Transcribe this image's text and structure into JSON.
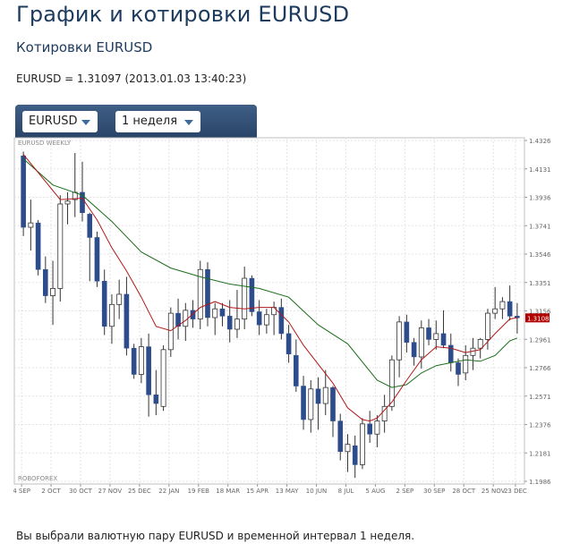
{
  "page": {
    "title": "График и котировки EURUSD",
    "subtitle": "Котировки EURUSD",
    "quote_line": "EURUSD = 1.31097 (2013.01.03 13:40:23)",
    "footer": "Вы выбрали валютную пару EURUSD и временной интервал 1 неделя."
  },
  "controls": {
    "symbol": {
      "value": "EURUSD"
    },
    "period": {
      "value": "1 неделя"
    }
  },
  "chart_data": {
    "type": "candlestick",
    "symbol_label": "EURUSD WEEKLY",
    "watermark": "ROBOFOREX",
    "current_price_label": "1.3108",
    "current_price": 1.3108,
    "ylim": [
      1.1986,
      1.4326
    ],
    "y_ticks": [
      "1.4326",
      "1.4131",
      "1.3936",
      "1.3741",
      "1.3546",
      "1.3351",
      "1.3156",
      "1.2961",
      "1.2766",
      "1.2571",
      "1.2376",
      "1.2181",
      "1.1986"
    ],
    "x_ticks": [
      "4 SEP",
      "2 OCT",
      "30 OCT",
      "27 NOV",
      "25 DEC",
      "22 JAN",
      "19 FEB",
      "18 MAR",
      "15 APR",
      "13 MAY",
      "10 JUN",
      "8 JUL",
      "5 AUG",
      "2 SEP",
      "30 SEP",
      "28 OCT",
      "25 NOV",
      "23 DEC"
    ],
    "grid": true,
    "colors": {
      "bear": "#2d4c8c",
      "bull": "#ffffff",
      "wick": "#333333",
      "ma_fast": "#b01818",
      "ma_slow": "#1c6d1c",
      "price_tag": "#b00000"
    },
    "candles": [
      [
        1.422,
        1.425,
        1.367,
        1.373
      ],
      [
        1.373,
        1.392,
        1.357,
        1.376
      ],
      [
        1.376,
        1.378,
        1.34,
        1.344
      ],
      [
        1.344,
        1.353,
        1.321,
        1.326
      ],
      [
        1.326,
        1.35,
        1.306,
        1.331
      ],
      [
        1.331,
        1.395,
        1.322,
        1.389
      ],
      [
        1.389,
        1.397,
        1.375,
        1.391
      ],
      [
        1.392,
        1.424,
        1.38,
        1.397
      ],
      [
        1.397,
        1.418,
        1.377,
        1.383
      ],
      [
        1.382,
        1.383,
        1.336,
        1.366
      ],
      [
        1.366,
        1.37,
        1.332,
        1.336
      ],
      [
        1.336,
        1.344,
        1.299,
        1.305
      ],
      [
        1.305,
        1.327,
        1.293,
        1.32
      ],
      [
        1.32,
        1.337,
        1.31,
        1.327
      ],
      [
        1.327,
        1.339,
        1.285,
        1.29
      ],
      [
        1.29,
        1.293,
        1.269,
        1.272
      ],
      [
        1.272,
        1.297,
        1.266,
        1.291
      ],
      [
        1.291,
        1.3,
        1.243,
        1.258
      ],
      [
        1.258,
        1.275,
        1.244,
        1.252
      ],
      [
        1.25,
        1.292,
        1.247,
        1.289
      ],
      [
        1.289,
        1.318,
        1.284,
        1.314
      ],
      [
        1.314,
        1.324,
        1.296,
        1.305
      ],
      [
        1.305,
        1.321,
        1.295,
        1.316
      ],
      [
        1.316,
        1.323,
        1.304,
        1.31
      ],
      [
        1.31,
        1.35,
        1.303,
        1.344
      ],
      [
        1.344,
        1.349,
        1.305,
        1.311
      ],
      [
        1.311,
        1.321,
        1.299,
        1.317
      ],
      [
        1.317,
        1.321,
        1.305,
        1.312
      ],
      [
        1.312,
        1.323,
        1.294,
        1.303
      ],
      [
        1.303,
        1.33,
        1.297,
        1.31
      ],
      [
        1.31,
        1.346,
        1.303,
        1.338
      ],
      [
        1.338,
        1.34,
        1.312,
        1.315
      ],
      [
        1.315,
        1.323,
        1.299,
        1.306
      ],
      [
        1.306,
        1.317,
        1.3,
        1.313
      ],
      [
        1.313,
        1.322,
        1.299,
        1.318
      ],
      [
        1.318,
        1.324,
        1.296,
        1.3
      ],
      [
        1.3,
        1.306,
        1.28,
        1.286
      ],
      [
        1.285,
        1.296,
        1.26,
        1.264
      ],
      [
        1.264,
        1.271,
        1.234,
        1.241
      ],
      [
        1.241,
        1.268,
        1.232,
        1.262
      ],
      [
        1.262,
        1.27,
        1.234,
        1.252
      ],
      [
        1.252,
        1.275,
        1.244,
        1.263
      ],
      [
        1.263,
        1.264,
        1.229,
        1.24
      ],
      [
        1.24,
        1.245,
        1.213,
        1.219
      ],
      [
        1.219,
        1.231,
        1.205,
        1.224
      ],
      [
        1.223,
        1.23,
        1.201,
        1.21
      ],
      [
        1.21,
        1.242,
        1.207,
        1.238
      ],
      [
        1.238,
        1.247,
        1.225,
        1.231
      ],
      [
        1.231,
        1.244,
        1.222,
        1.24
      ],
      [
        1.24,
        1.258,
        1.232,
        1.25
      ],
      [
        1.25,
        1.285,
        1.247,
        1.282
      ],
      [
        1.282,
        1.312,
        1.27,
        1.308
      ],
      [
        1.308,
        1.313,
        1.287,
        1.294
      ],
      [
        1.294,
        1.297,
        1.278,
        1.284
      ],
      [
        1.284,
        1.309,
        1.276,
        1.304
      ],
      [
        1.304,
        1.31,
        1.292,
        1.296
      ],
      [
        1.296,
        1.309,
        1.289,
        1.3
      ],
      [
        1.3,
        1.316,
        1.29,
        1.292
      ],
      [
        1.292,
        1.3,
        1.274,
        1.28
      ],
      [
        1.28,
        1.283,
        1.264,
        1.272
      ],
      [
        1.273,
        1.292,
        1.268,
        1.285
      ],
      [
        1.285,
        1.297,
        1.275,
        1.29
      ],
      [
        1.29,
        1.297,
        1.283,
        1.296
      ],
      [
        1.296,
        1.317,
        1.289,
        1.314
      ],
      [
        1.314,
        1.332,
        1.31,
        1.317
      ],
      [
        1.317,
        1.325,
        1.31,
        1.322
      ],
      [
        1.322,
        1.333,
        1.309,
        1.312
      ],
      [
        1.312,
        1.321,
        1.3,
        1.3108
      ]
    ],
    "ma_fast": [
      [
        0,
        1.423
      ],
      [
        5,
        1.392
      ],
      [
        8,
        1.393
      ],
      [
        10,
        1.378
      ],
      [
        12,
        1.359
      ],
      [
        14,
        1.343
      ],
      [
        16,
        1.325
      ],
      [
        18,
        1.305
      ],
      [
        20,
        1.302
      ],
      [
        22,
        1.309
      ],
      [
        24,
        1.318
      ],
      [
        26,
        1.322
      ],
      [
        28,
        1.318
      ],
      [
        30,
        1.317
      ],
      [
        32,
        1.318
      ],
      [
        34,
        1.318
      ],
      [
        36,
        1.308
      ],
      [
        38,
        1.292
      ],
      [
        40,
        1.279
      ],
      [
        42,
        1.266
      ],
      [
        44,
        1.249
      ],
      [
        46,
        1.241
      ],
      [
        47,
        1.24
      ],
      [
        48,
        1.242
      ],
      [
        50,
        1.253
      ],
      [
        52,
        1.268
      ],
      [
        54,
        1.282
      ],
      [
        56,
        1.291
      ],
      [
        58,
        1.29
      ],
      [
        60,
        1.287
      ],
      [
        62,
        1.289
      ],
      [
        64,
        1.3
      ],
      [
        66,
        1.31
      ],
      [
        67,
        1.311
      ]
    ],
    "ma_slow": [
      [
        0,
        1.42
      ],
      [
        4,
        1.402
      ],
      [
        8,
        1.395
      ],
      [
        12,
        1.377
      ],
      [
        16,
        1.356
      ],
      [
        20,
        1.345
      ],
      [
        24,
        1.339
      ],
      [
        28,
        1.334
      ],
      [
        32,
        1.331
      ],
      [
        36,
        1.325
      ],
      [
        40,
        1.306
      ],
      [
        44,
        1.293
      ],
      [
        48,
        1.268
      ],
      [
        50,
        1.263
      ],
      [
        52,
        1.265
      ],
      [
        54,
        1.273
      ],
      [
        56,
        1.278
      ],
      [
        60,
        1.282
      ],
      [
        62,
        1.281
      ],
      [
        64,
        1.285
      ],
      [
        66,
        1.295
      ],
      [
        67,
        1.297
      ]
    ]
  }
}
